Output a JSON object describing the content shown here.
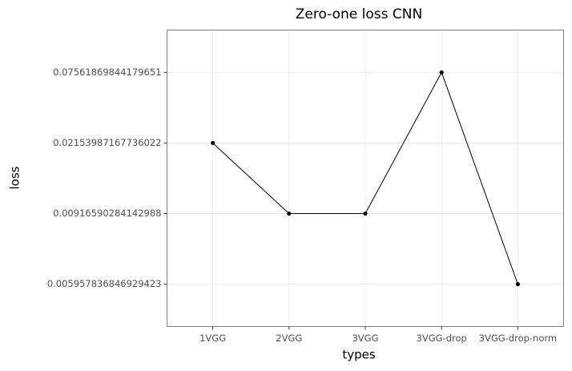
{
  "chart_data": {
    "type": "line",
    "title": "Zero-one loss CNN",
    "x_label": "types",
    "y_label": "loss",
    "categories": [
      "1VGG",
      "2VGG",
      "3VGG",
      "3VGG-drop",
      "3VGG-drop-norm"
    ],
    "values": [
      0.02153987167736022,
      0.00916590284142988,
      0.00916590284142988,
      0.07561869844179651,
      0.005957836846929423
    ],
    "color": "#000000",
    "y_scale": "discrete",
    "yticks": [
      0.005957836846929423,
      0.00916590284142988,
      0.02153987167736022,
      0.07561869844179651
    ],
    "grid": true
  }
}
